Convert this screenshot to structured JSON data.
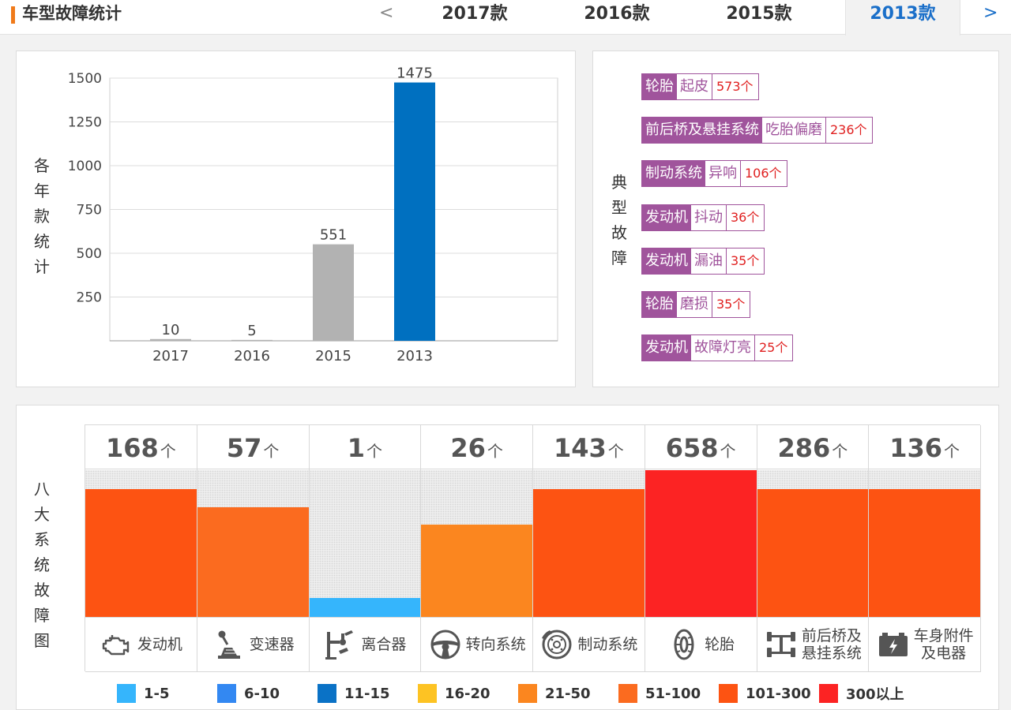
{
  "header": {
    "title": "车型故障统计",
    "prev": "<",
    "next": ">",
    "tabs": [
      {
        "label": "2017款",
        "active": false
      },
      {
        "label": "2016款",
        "active": false
      },
      {
        "label": "2015款",
        "active": false
      },
      {
        "label": "2013款",
        "active": true
      }
    ]
  },
  "colors": {
    "accent": "#f07a1a",
    "active_tab": "#1a6fc9",
    "fault_tag": "#a0549c",
    "fault_count": "#e02020"
  },
  "chart_panel": {
    "ylabel": "各年款统计"
  },
  "chart_data": {
    "type": "bar",
    "categories": [
      "2017",
      "2016",
      "2015",
      "2013"
    ],
    "values": [
      10,
      5,
      551,
      1475
    ],
    "bar_colors": [
      "#b2b2b2",
      "#b2b2b2",
      "#b2b2b2",
      "#0070c0"
    ],
    "ylabel": "各年款统计",
    "yticks": [
      250,
      500,
      750,
      1000,
      1250,
      1500
    ],
    "ylim": [
      0,
      1500
    ],
    "grid": true
  },
  "typical": {
    "label": "典型故障",
    "faults": [
      {
        "system": "轮胎",
        "type": "起皮",
        "count": "573个"
      },
      {
        "system": "前后桥及悬挂系统",
        "type": "吃胎偏磨",
        "count": "236个"
      },
      {
        "system": "制动系统",
        "type": "异响",
        "count": "106个"
      },
      {
        "system": "发动机",
        "type": "抖动",
        "count": "36个"
      },
      {
        "system": "发动机",
        "type": "漏油",
        "count": "35个"
      },
      {
        "system": "轮胎",
        "type": "磨损",
        "count": "35个"
      },
      {
        "system": "发动机",
        "type": "故障灯亮",
        "count": "25个"
      }
    ]
  },
  "systems": {
    "label": "八大系统故障图",
    "unit": "个",
    "items": [
      {
        "name": "发动机",
        "count": 168,
        "level": 0.87,
        "color": "#fd5312",
        "icon": "engine-icon"
      },
      {
        "name": "变速器",
        "count": 57,
        "level": 0.75,
        "color": "#fb6b1f",
        "icon": "gear-shift-icon"
      },
      {
        "name": "离合器",
        "count": 1,
        "level": 0.13,
        "color": "#35b5fc",
        "icon": "clutch-pedal-icon"
      },
      {
        "name": "转向系统",
        "count": 26,
        "level": 0.63,
        "color": "#fb861f",
        "icon": "steering-wheel-icon"
      },
      {
        "name": "制动系统",
        "count": 143,
        "level": 0.87,
        "color": "#fd5312",
        "icon": "brake-disc-icon"
      },
      {
        "name": "轮胎",
        "count": 658,
        "level": 1.0,
        "color": "#fc2323",
        "icon": "tire-icon"
      },
      {
        "name": "前后桥及悬挂系统",
        "name_lines": [
          "前后桥及",
          "悬挂系统"
        ],
        "count": 286,
        "level": 0.87,
        "color": "#fd5312",
        "icon": "axle-icon"
      },
      {
        "name": "车身附件及电器",
        "name_lines": [
          "车身附件",
          "及电器"
        ],
        "count": 136,
        "level": 0.87,
        "color": "#fd5312",
        "icon": "battery-icon"
      }
    ]
  },
  "legend": [
    {
      "label": "1-5",
      "color": "#35b5fc"
    },
    {
      "label": "6-10",
      "color": "#3388f2"
    },
    {
      "label": "11-15",
      "color": "#0a72c6"
    },
    {
      "label": "16-20",
      "color": "#fdc323"
    },
    {
      "label": "21-50",
      "color": "#fb861f"
    },
    {
      "label": "51-100",
      "color": "#fb6b1f"
    },
    {
      "label": "101-300",
      "color": "#fd5312"
    },
    {
      "label": "300以上",
      "color": "#fc2323"
    }
  ]
}
